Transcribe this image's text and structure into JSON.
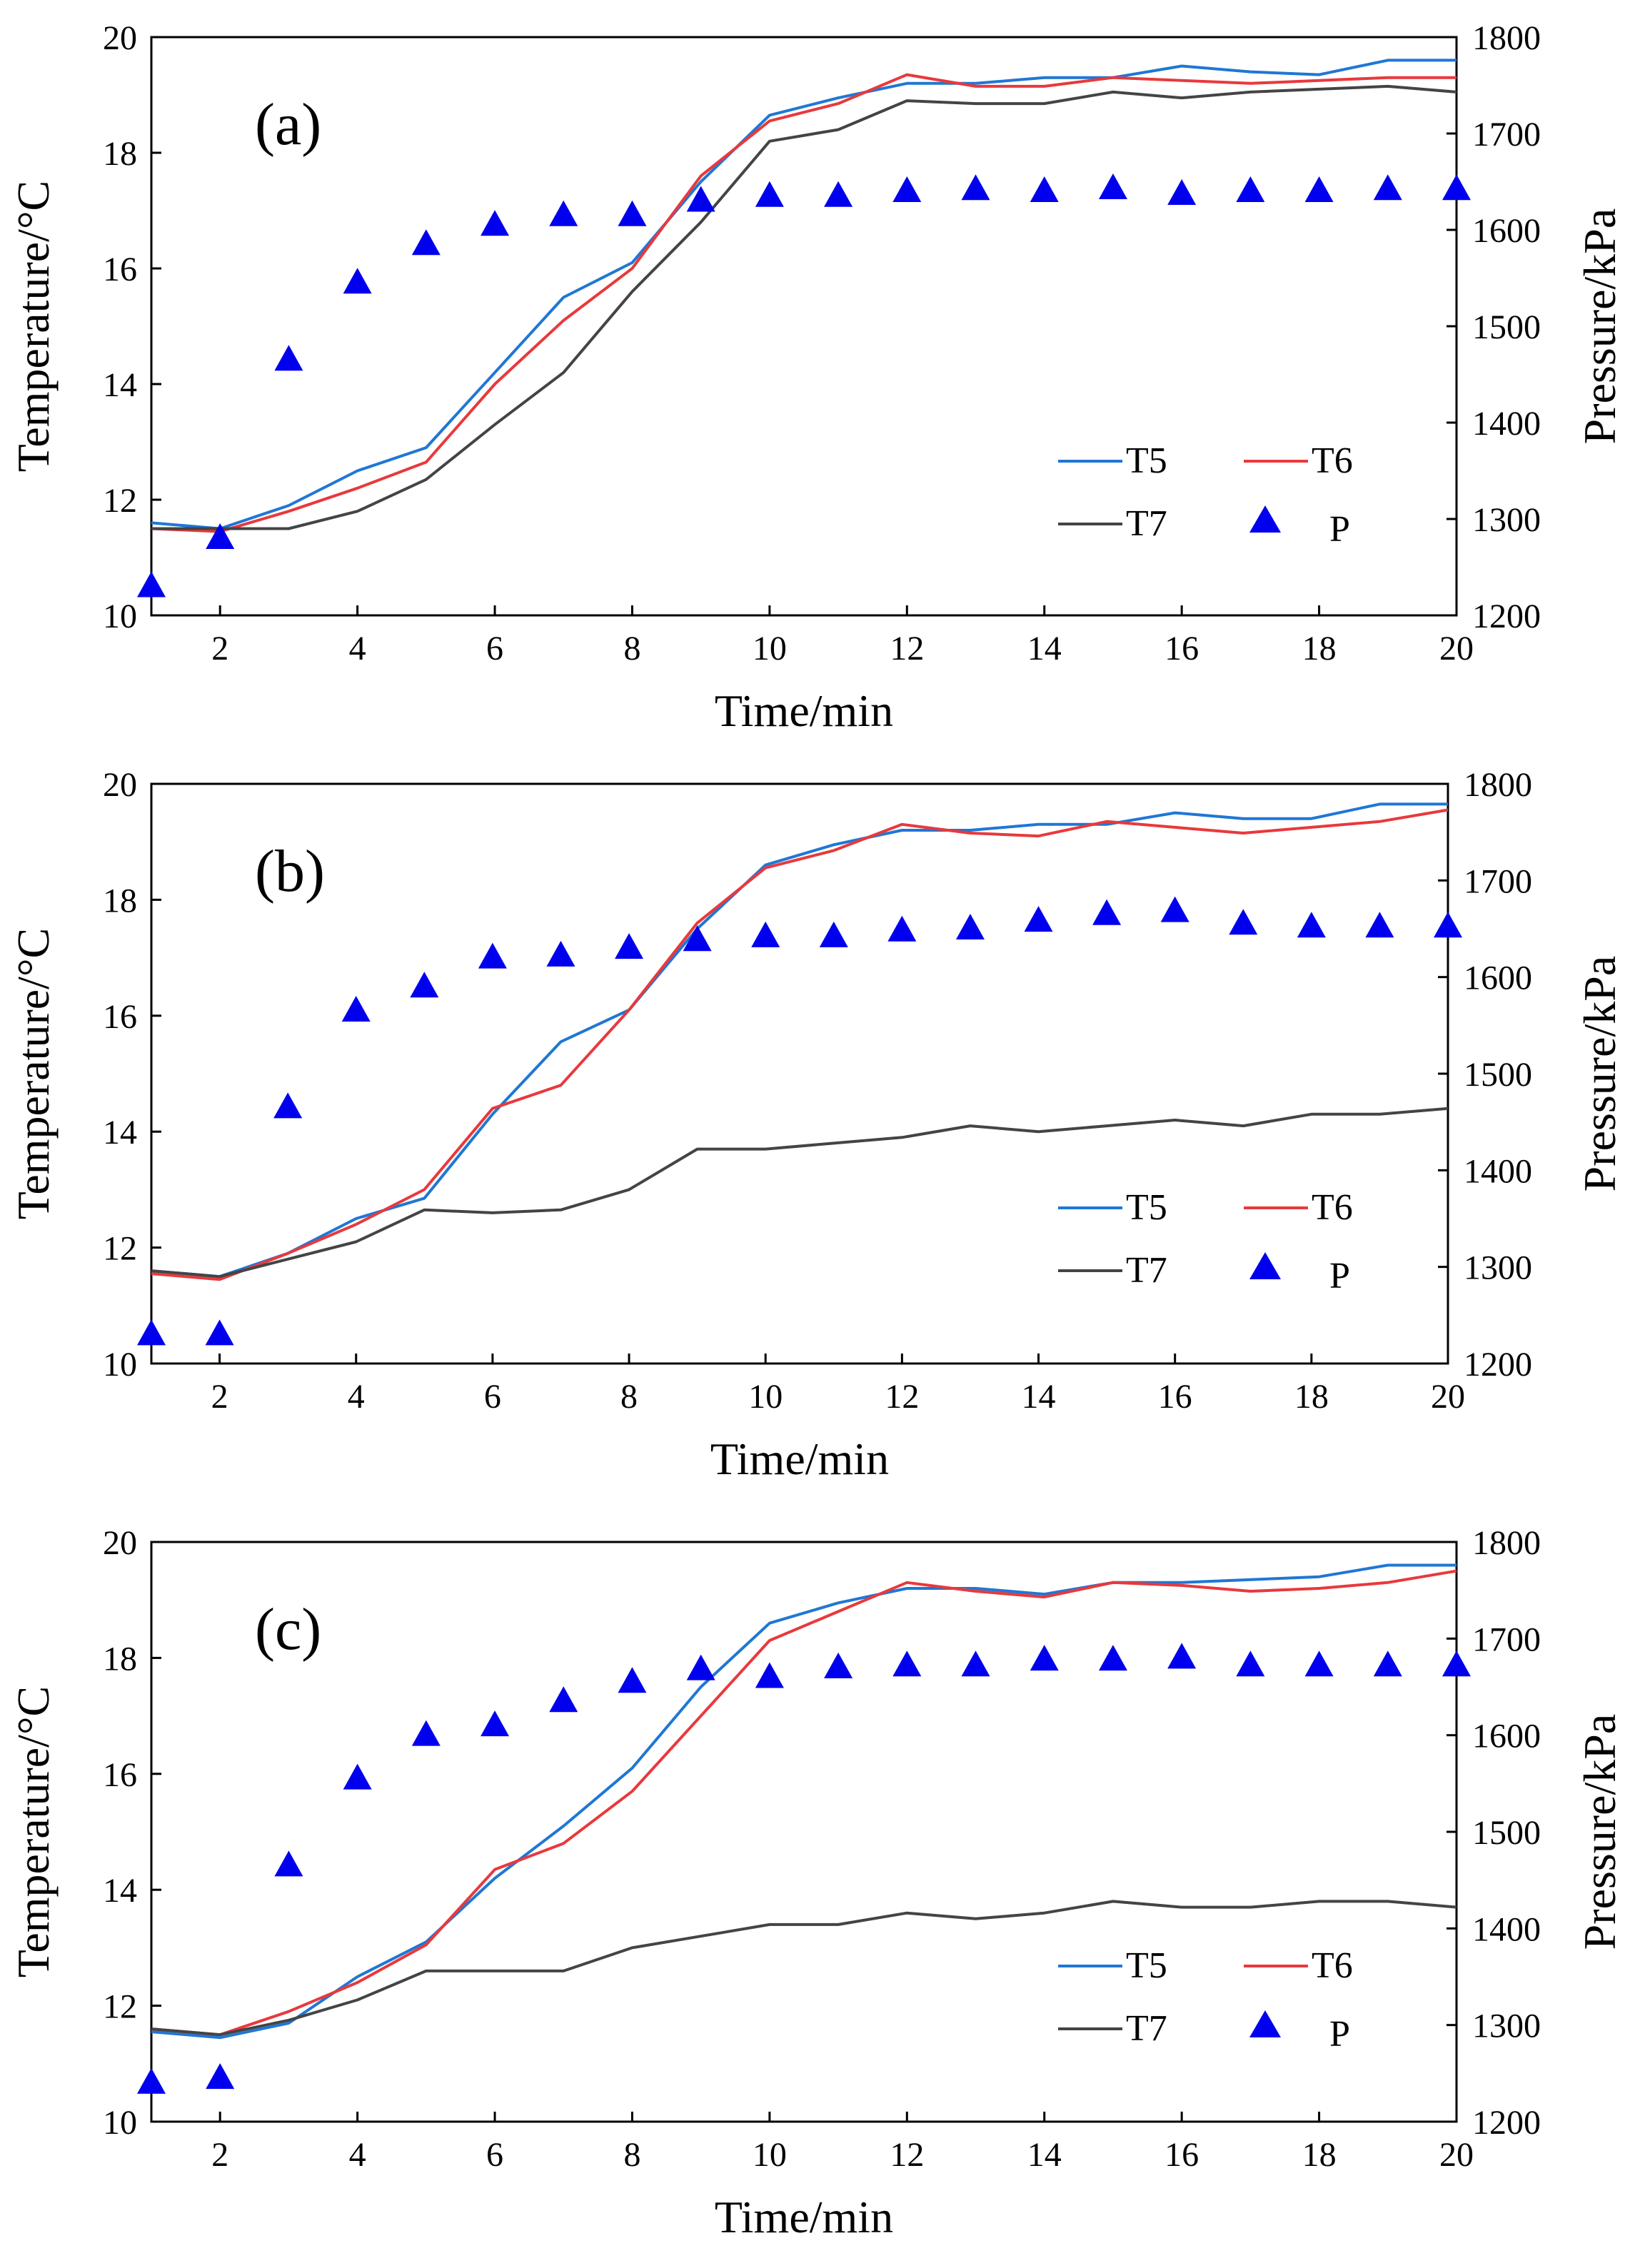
{
  "chart_data": [
    {
      "type": "line",
      "panel_label": "(a)",
      "xlabel": "Time/min",
      "ylabel": "Temperature/°C",
      "y2label": "Pressure/kPa",
      "xlim": [
        1,
        20
      ],
      "ylim": [
        10,
        20
      ],
      "y2lim": [
        1200,
        1800
      ],
      "x_ticks": [
        2,
        4,
        6,
        8,
        10,
        12,
        14,
        16,
        18,
        20
      ],
      "y_ticks": [
        10,
        12,
        14,
        16,
        18,
        20
      ],
      "y2_ticks": [
        1200,
        1300,
        1400,
        1500,
        1600,
        1700,
        1800
      ],
      "x": [
        1,
        2,
        3,
        4,
        5,
        6,
        7,
        8,
        9,
        10,
        11,
        12,
        13,
        14,
        15,
        16,
        17,
        18,
        19,
        20
      ],
      "series": [
        {
          "name": "T5",
          "color": "#1f77d4",
          "axis": "left",
          "marker": "line",
          "values": [
            11.6,
            11.5,
            11.9,
            12.5,
            12.9,
            14.2,
            15.5,
            16.1,
            17.5,
            18.65,
            18.95,
            19.2,
            19.2,
            19.3,
            19.3,
            19.5,
            19.4,
            19.35,
            19.6,
            19.6
          ]
        },
        {
          "name": "T6",
          "color": "#e8393d",
          "axis": "left",
          "marker": "line",
          "values": [
            11.5,
            11.45,
            11.8,
            12.2,
            12.65,
            14.0,
            15.1,
            16.0,
            17.6,
            18.55,
            18.85,
            19.35,
            19.15,
            19.15,
            19.3,
            19.25,
            19.2,
            19.25,
            19.3,
            19.3
          ]
        },
        {
          "name": "T7",
          "color": "#444444",
          "axis": "left",
          "marker": "line",
          "values": [
            11.5,
            11.5,
            11.5,
            11.8,
            12.35,
            13.3,
            14.2,
            15.6,
            16.8,
            18.2,
            18.4,
            18.9,
            18.85,
            18.85,
            19.05,
            18.95,
            19.05,
            19.1,
            19.15,
            19.05
          ]
        },
        {
          "name": "P",
          "color": "#0000ee",
          "axis": "right",
          "marker": "triangle",
          "values": [
            1230,
            1280,
            1465,
            1545,
            1585,
            1605,
            1615,
            1615,
            1630,
            1635,
            1635,
            1640,
            1642,
            1640,
            1643,
            1637,
            1640,
            1640,
            1642,
            1642
          ]
        }
      ]
    },
    {
      "type": "line",
      "panel_label": "(b)",
      "xlabel": "Time/min",
      "ylabel": "Temperature/°C",
      "y2label": "Pressure/kPa",
      "xlim": [
        1,
        20
      ],
      "ylim": [
        10,
        20
      ],
      "y2lim": [
        1200,
        1800
      ],
      "x_ticks": [
        2,
        4,
        6,
        8,
        10,
        12,
        14,
        16,
        18,
        20
      ],
      "y_ticks": [
        10,
        12,
        14,
        16,
        18,
        20
      ],
      "y2_ticks": [
        1200,
        1300,
        1400,
        1500,
        1600,
        1700,
        1800
      ],
      "x": [
        1,
        2,
        3,
        4,
        5,
        6,
        7,
        8,
        9,
        10,
        11,
        12,
        13,
        14,
        15,
        16,
        17,
        18,
        19,
        20
      ],
      "series": [
        {
          "name": "T5",
          "color": "#1f77d4",
          "axis": "left",
          "marker": "line",
          "values": [
            11.6,
            11.5,
            11.9,
            12.5,
            12.85,
            14.3,
            15.55,
            16.1,
            17.5,
            18.6,
            18.95,
            19.2,
            19.2,
            19.3,
            19.3,
            19.5,
            19.4,
            19.4,
            19.65,
            19.65
          ]
        },
        {
          "name": "T6",
          "color": "#e8393d",
          "axis": "left",
          "marker": "line",
          "values": [
            11.55,
            11.45,
            11.9,
            12.4,
            13.0,
            14.4,
            14.8,
            16.1,
            17.6,
            18.55,
            18.85,
            19.3,
            19.15,
            19.1,
            19.35,
            19.25,
            19.15,
            19.25,
            19.35,
            19.55
          ]
        },
        {
          "name": "T7",
          "color": "#444444",
          "axis": "left",
          "marker": "line",
          "values": [
            11.6,
            11.5,
            11.8,
            12.1,
            12.65,
            12.6,
            12.65,
            13.0,
            13.7,
            13.7,
            13.8,
            13.9,
            14.1,
            14.0,
            14.1,
            14.2,
            14.1,
            14.3,
            14.3,
            14.4
          ]
        },
        {
          "name": "P",
          "color": "#0000ee",
          "axis": "right",
          "marker": "triangle",
          "values": [
            1230,
            1230,
            1465,
            1565,
            1590,
            1620,
            1622,
            1630,
            1638,
            1642,
            1642,
            1648,
            1650,
            1658,
            1665,
            1668,
            1655,
            1652,
            1652,
            1652
          ]
        }
      ]
    },
    {
      "type": "line",
      "panel_label": "(c)",
      "xlabel": "Time/min",
      "ylabel": "Temperature/°C",
      "y2label": "Pressure/kPa",
      "xlim": [
        1,
        20
      ],
      "ylim": [
        10,
        20
      ],
      "y2lim": [
        1200,
        1800
      ],
      "x_ticks": [
        2,
        4,
        6,
        8,
        10,
        12,
        14,
        16,
        18,
        20
      ],
      "y_ticks": [
        10,
        12,
        14,
        16,
        18,
        20
      ],
      "y2_ticks": [
        1200,
        1300,
        1400,
        1500,
        1600,
        1700,
        1800
      ],
      "x": [
        1,
        2,
        3,
        4,
        5,
        6,
        7,
        8,
        9,
        10,
        11,
        12,
        13,
        14,
        15,
        16,
        17,
        18,
        19,
        20
      ],
      "series": [
        {
          "name": "T5",
          "color": "#1f77d4",
          "axis": "left",
          "marker": "line",
          "values": [
            11.55,
            11.45,
            11.7,
            12.5,
            13.1,
            14.2,
            15.1,
            16.1,
            17.5,
            18.6,
            18.95,
            19.2,
            19.2,
            19.1,
            19.3,
            19.3,
            19.35,
            19.4,
            19.6,
            19.6
          ]
        },
        {
          "name": "T6",
          "color": "#e8393d",
          "axis": "left",
          "marker": "line",
          "values": [
            11.6,
            11.5,
            11.9,
            12.4,
            13.05,
            14.35,
            14.8,
            15.7,
            17.0,
            18.3,
            18.8,
            19.3,
            19.15,
            19.05,
            19.3,
            19.25,
            19.15,
            19.2,
            19.3,
            19.5
          ]
        },
        {
          "name": "T7",
          "color": "#444444",
          "axis": "left",
          "marker": "line",
          "values": [
            11.6,
            11.5,
            11.75,
            12.1,
            12.6,
            12.6,
            12.6,
            13.0,
            13.2,
            13.4,
            13.4,
            13.6,
            13.5,
            13.6,
            13.8,
            13.7,
            13.7,
            13.8,
            13.8,
            13.7
          ]
        },
        {
          "name": "P",
          "color": "#0000ee",
          "axis": "right",
          "marker": "triangle",
          "values": [
            1240,
            1245,
            1465,
            1555,
            1600,
            1610,
            1635,
            1655,
            1668,
            1660,
            1670,
            1672,
            1672,
            1678,
            1678,
            1680,
            1672,
            1672,
            1672,
            1672
          ]
        }
      ]
    }
  ]
}
